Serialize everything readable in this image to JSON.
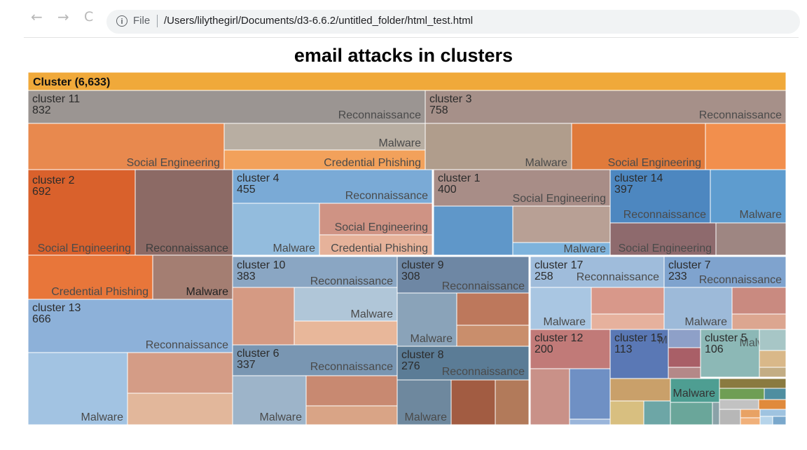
{
  "browser": {
    "back_glyph": "←",
    "forward_glyph": "→",
    "reload_glyph": "C",
    "info_glyph": "i",
    "file_label": "File",
    "url": "/Users/lilythegirl/Documents/d3-6.6.2/untitled_folder/html_test.html"
  },
  "page": {
    "title": "email attacks in clusters"
  },
  "chart_data": {
    "type": "treemap",
    "title": "email attacks in clusters",
    "root": {
      "label": "Cluster (6,633)",
      "value": 6633,
      "color": "#f0a93a"
    },
    "clusters": [
      {
        "name": "cluster 11",
        "value": 832,
        "labels": [
          "Reconnaissance",
          "Social Engineering",
          "Malware",
          "Credential Phishing"
        ]
      },
      {
        "name": "cluster 3",
        "value": 758,
        "labels": [
          "Reconnaissance",
          "Malware",
          "Social Engineering"
        ]
      },
      {
        "name": "cluster 2",
        "value": 692,
        "labels": [
          "Social Engineering",
          "Reconnaissance",
          "Credential Phishing",
          "Malware"
        ]
      },
      {
        "name": "cluster 13",
        "value": 666,
        "labels": [
          "Reconnaissance",
          "Malware"
        ]
      },
      {
        "name": "cluster 4",
        "value": 455,
        "labels": [
          "Reconnaissance",
          "Social Engineering",
          "Malware",
          "Credential Phishing"
        ]
      },
      {
        "name": "cluster 1",
        "value": 400,
        "labels": [
          "Social Engineering",
          "Malware"
        ]
      },
      {
        "name": "cluster 14",
        "value": 397,
        "labels": [
          "Reconnaissance",
          "Malware",
          "Social Engineering"
        ]
      },
      {
        "name": "cluster 10",
        "value": 383,
        "labels": [
          "Reconnaissance",
          "Malware"
        ]
      },
      {
        "name": "cluster 6",
        "value": 337,
        "labels": [
          "Reconnaissance",
          "Malware"
        ]
      },
      {
        "name": "cluster 9",
        "value": 308,
        "labels": [
          "Reconnaissance",
          "Malware"
        ]
      },
      {
        "name": "cluster 8",
        "value": 276,
        "labels": [
          "Reconnaissance",
          "Malware"
        ]
      },
      {
        "name": "cluster 17",
        "value": 258,
        "labels": [
          "Reconnaissance",
          "Malware"
        ]
      },
      {
        "name": "cluster 7",
        "value": 233,
        "labels": [
          "Reconnaissance",
          "Malware"
        ]
      },
      {
        "name": "cluster 12",
        "value": 200,
        "labels": []
      },
      {
        "name": "cluster 15",
        "value": 113,
        "labels": [
          "Malware"
        ]
      },
      {
        "name": "cluster 5",
        "value": 106,
        "labels": [
          "Malware"
        ]
      }
    ],
    "colors": {
      "root": "#f0a93a",
      "cluster_11_header": "#9b9592",
      "cluster_3_header": "#a69089",
      "cluster_4_header": "#7aaad6",
      "cluster_14_header": "#4d87c0",
      "cluster_13_header": "#8db1d9",
      "cluster_8_header": "#5b7c96"
    }
  }
}
